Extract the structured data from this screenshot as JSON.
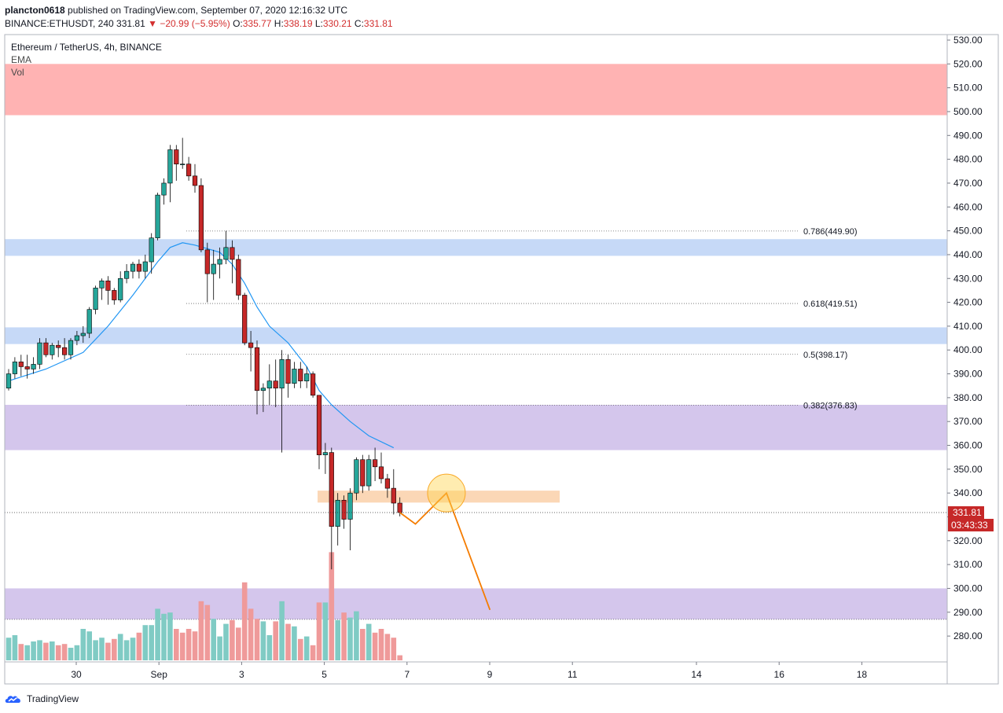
{
  "header": {
    "publisher": "plancton0618",
    "published_text": "published on TradingView.com, September 07, 2020 12:16:32 UTC",
    "symbol_line": "BINANCE:ETHUSDT, 240",
    "last": "331.81",
    "change": "−20.99 (−5.95%)",
    "o_label": "O:",
    "o_value": "335.77",
    "h_label": "H:",
    "h_value": "338.19",
    "l_label": "L:",
    "l_value": "330.21",
    "c_label": "C:",
    "c_value": "331.81"
  },
  "legend": {
    "title": "Ethereum / TetherUS, 4h, BINANCE",
    "indicator_1": "EMA",
    "indicator_2": "Vol"
  },
  "price_badge": {
    "price": "331.81",
    "countdown": "03:43:33",
    "color": "#c62828"
  },
  "footer": {
    "brand": "TradingView"
  },
  "colors": {
    "up": "#26a69a",
    "down": "#c62828",
    "ema": "#2196f3",
    "vol_up": "#80cbc4",
    "vol_down": "#ef9a9a",
    "zone_red": "#ffb3b3",
    "zone_blue": "#c6d9f7",
    "zone_purple": "#d4c6ec",
    "zone_orange": "#fbd7b6",
    "projection": "#f57c00",
    "circle": "#ffd54f"
  },
  "chart_data": {
    "type": "candlestick",
    "title": "Ethereum / TetherUS, 4h, BINANCE",
    "y_ticks": [
      530,
      520,
      510,
      500,
      490,
      480,
      470,
      460,
      450,
      440,
      430,
      420,
      410,
      400,
      390,
      380,
      370,
      360,
      350,
      340,
      330,
      320,
      310,
      300,
      290,
      280
    ],
    "x_ticks": [
      "30",
      "Sep",
      "3",
      "5",
      "7",
      "9",
      "11",
      "14",
      "16",
      "18"
    ],
    "x_tick_day": [
      30,
      32,
      34,
      36,
      38,
      40,
      42,
      45,
      47,
      49
    ],
    "ohlc": [
      [
        384.0,
        392.0,
        383.0,
        390.0
      ],
      [
        390.0,
        397.0,
        388.0,
        395.0
      ],
      [
        395.0,
        398.0,
        389.0,
        393.0
      ],
      [
        393.0,
        398.0,
        388.0,
        392.0
      ],
      [
        392.0,
        397.0,
        390.0,
        394.0
      ],
      [
        394.0,
        405.0,
        392.0,
        403.0
      ],
      [
        403.0,
        405.0,
        397.0,
        398.0
      ],
      [
        398.0,
        403.0,
        396.0,
        402.0
      ],
      [
        402.0,
        404.0,
        397.0,
        401.0
      ],
      [
        401.0,
        405.0,
        396.0,
        398.0
      ],
      [
        398.0,
        405.0,
        396.0,
        404.0
      ],
      [
        404.0,
        408.0,
        402.0,
        406.0
      ],
      [
        406.0,
        410.0,
        403.0,
        407.0
      ],
      [
        407.0,
        418.0,
        405.0,
        417.0
      ],
      [
        417.0,
        427.0,
        415.0,
        426.0
      ],
      [
        426.0,
        430.0,
        421.0,
        429.0
      ],
      [
        429.0,
        431.0,
        419.0,
        425.0
      ],
      [
        425.0,
        426.0,
        419.0,
        421.0
      ],
      [
        421.0,
        433.0,
        420.0,
        430.0
      ],
      [
        430.0,
        436.0,
        428.0,
        433.0
      ],
      [
        433.0,
        437.0,
        430.0,
        436.0
      ],
      [
        436.0,
        438.0,
        430.0,
        433.0
      ],
      [
        433.0,
        440.0,
        430.0,
        437.0
      ],
      [
        437.0,
        449.0,
        432.0,
        447.0
      ],
      [
        447.0,
        466.0,
        446.0,
        465.0
      ],
      [
        465.0,
        472.0,
        461.0,
        470.0
      ],
      [
        470.0,
        486.0,
        462.0,
        484.0
      ],
      [
        484.0,
        486.0,
        471.0,
        478.0
      ],
      [
        478.0,
        489.0,
        476.0,
        478.0
      ],
      [
        478.0,
        481.0,
        471.0,
        473.0
      ],
      [
        473.0,
        478.0,
        466.0,
        469.0
      ],
      [
        469.0,
        472.0,
        441.0,
        442.0
      ],
      [
        442.0,
        445.0,
        420.0,
        432.0
      ],
      [
        432.0,
        442.0,
        421.0,
        436.0
      ],
      [
        436.0,
        443.0,
        430.0,
        438.0
      ],
      [
        438.0,
        450.0,
        436.0,
        443.0
      ],
      [
        443.0,
        446.0,
        428.0,
        438.0
      ],
      [
        438.0,
        440.0,
        421.0,
        423.0
      ],
      [
        423.0,
        424.0,
        402.0,
        403.0
      ],
      [
        403.0,
        408.0,
        391.0,
        401.0
      ],
      [
        401.0,
        404.0,
        373.0,
        383.0
      ],
      [
        383.0,
        386.0,
        374.0,
        384.0
      ],
      [
        384.0,
        394.0,
        377.0,
        387.0
      ],
      [
        387.0,
        396.0,
        376.0,
        384.0
      ],
      [
        384.0,
        400.0,
        357.0,
        396.0
      ],
      [
        396.0,
        398.0,
        380.0,
        386.0
      ],
      [
        386.0,
        395.0,
        384.0,
        392.0
      ],
      [
        392.0,
        395.0,
        384.0,
        387.0
      ],
      [
        387.0,
        393.0,
        384.0,
        390.0
      ],
      [
        390.0,
        391.0,
        380.0,
        381.0
      ],
      [
        381.0,
        381.0,
        350.0,
        356.0
      ],
      [
        356.0,
        361.0,
        348.0,
        357.0
      ],
      [
        357.0,
        359.0,
        308.0,
        326.0
      ],
      [
        326.0,
        340.0,
        318.0,
        337.0
      ],
      [
        337.0,
        339.0,
        325.0,
        329.0
      ],
      [
        329.0,
        342.0,
        316.0,
        340.0
      ],
      [
        340.0,
        355.0,
        337.0,
        354.0
      ],
      [
        354.0,
        356.0,
        340.0,
        343.0
      ],
      [
        343.0,
        356.0,
        341.0,
        354.0
      ],
      [
        354.0,
        359.0,
        345.0,
        351.0
      ],
      [
        351.0,
        357.0,
        344.0,
        346.0
      ],
      [
        346.0,
        348.0,
        338.0,
        342.0
      ],
      [
        342.0,
        350.0,
        331.0,
        335.77
      ],
      [
        335.77,
        338.19,
        330.21,
        331.81
      ]
    ],
    "volume_up": [
      true,
      true,
      false,
      true,
      true,
      true,
      false,
      true,
      false,
      false,
      true,
      true,
      true,
      true,
      true,
      true,
      false,
      false,
      true,
      true,
      true,
      false,
      true,
      true,
      true,
      true,
      true,
      false,
      false,
      false,
      false,
      false,
      false,
      true,
      true,
      true,
      false,
      false,
      false,
      false,
      false,
      true,
      true,
      false,
      true,
      false,
      true,
      false,
      true,
      false,
      false,
      true,
      false,
      true,
      false,
      true,
      true,
      false,
      true,
      false,
      false,
      false,
      false,
      false
    ],
    "volume_height": [
      0.18,
      0.2,
      0.13,
      0.12,
      0.15,
      0.16,
      0.14,
      0.15,
      0.12,
      0.13,
      0.1,
      0.12,
      0.25,
      0.23,
      0.16,
      0.18,
      0.14,
      0.17,
      0.21,
      0.16,
      0.18,
      0.22,
      0.28,
      0.28,
      0.41,
      0.37,
      0.38,
      0.25,
      0.22,
      0.25,
      0.23,
      0.47,
      0.44,
      0.33,
      0.19,
      0.29,
      0.32,
      0.26,
      0.62,
      0.41,
      0.33,
      0.31,
      0.2,
      0.31,
      0.47,
      0.29,
      0.27,
      0.17,
      0.19,
      0.12,
      0.46,
      0.46,
      0.86,
      0.32,
      0.38,
      0.34,
      0.39,
      0.25,
      0.29,
      0.22,
      0.25,
      0.21,
      0.18,
      0.04
    ],
    "ema": [
      [
        0,
        387
      ],
      [
        6,
        392
      ],
      [
        12,
        399
      ],
      [
        16,
        410
      ],
      [
        20,
        423
      ],
      [
        24,
        437
      ],
      [
        26,
        443
      ],
      [
        28,
        445
      ],
      [
        30,
        444
      ],
      [
        34,
        441
      ],
      [
        36,
        436
      ],
      [
        38,
        428
      ],
      [
        40,
        418
      ],
      [
        42,
        410
      ],
      [
        45,
        403
      ],
      [
        48,
        393
      ],
      [
        50,
        383
      ],
      [
        52,
        377
      ],
      [
        55,
        370
      ],
      [
        58,
        364
      ],
      [
        62,
        359
      ]
    ],
    "zones": [
      {
        "top": 520,
        "bottom": 498.5,
        "kind": "red"
      },
      {
        "top": 446.5,
        "bottom": 439.5,
        "kind": "blue"
      },
      {
        "top": 409.5,
        "bottom": 402.5,
        "kind": "blue"
      },
      {
        "top": 377,
        "bottom": 358,
        "kind": "purple"
      },
      {
        "top": 300,
        "bottom": 287,
        "kind": "purple"
      }
    ],
    "fibonacci": [
      {
        "label": "0.786(449.90)",
        "value": 449.9
      },
      {
        "label": "0.618(419.51)",
        "value": 419.51
      },
      {
        "label": "0.5(398.17)",
        "value": 398.17
      },
      {
        "label": "0.382(376.83)",
        "value": 376.83
      }
    ],
    "entry_zone": {
      "top": 341,
      "bottom": 336
    },
    "projection": [
      [
        65.5,
        327
      ],
      [
        70.5,
        340
      ],
      [
        77.5,
        291
      ]
    ],
    "highlight_circle": {
      "day_index": 70.5,
      "price": 340
    },
    "last_price": 331.81
  }
}
